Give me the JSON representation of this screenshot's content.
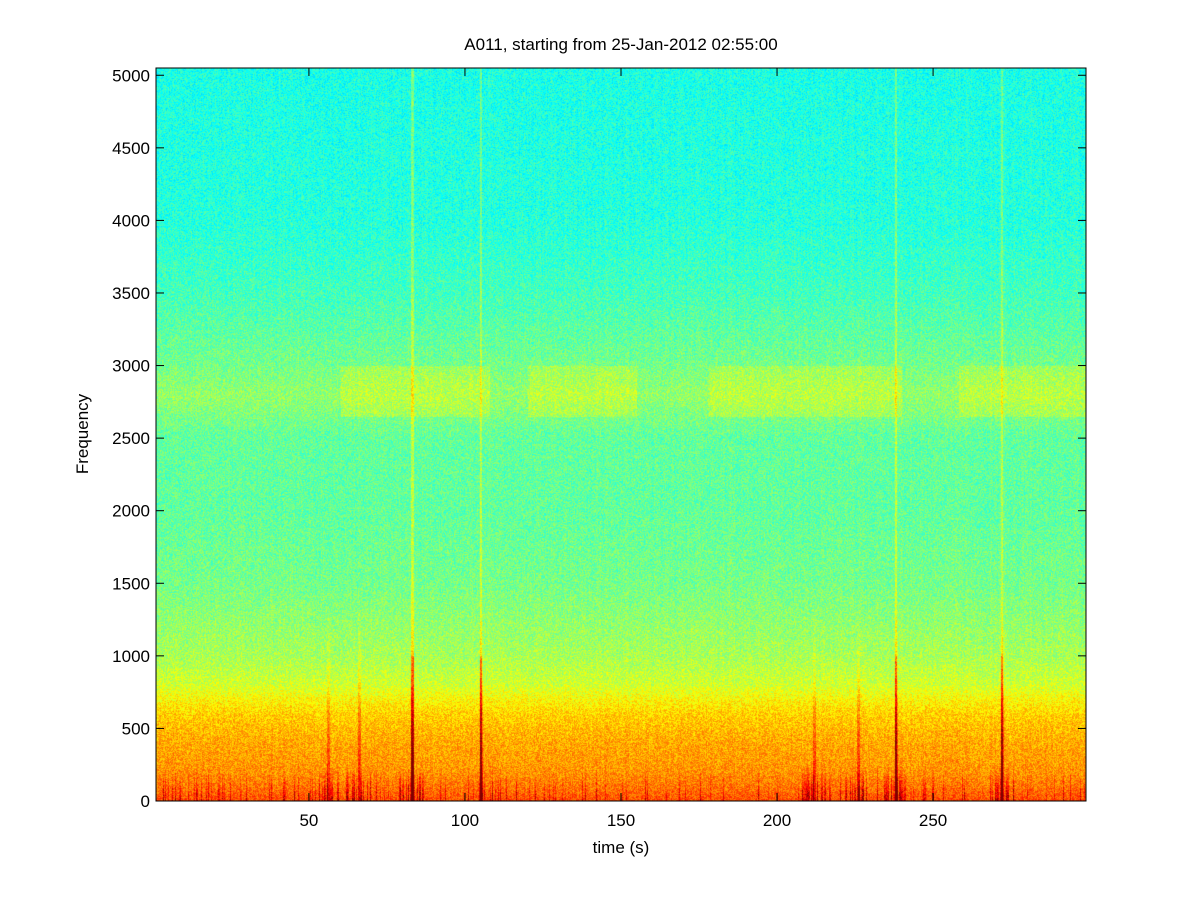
{
  "chart_data": {
    "type": "heatmap",
    "title": "A011, starting from 25-Jan-2012 02:55:00",
    "xlabel": "time (s)",
    "ylabel": "Frequency",
    "xlim": [
      1,
      299
    ],
    "ylim": [
      0,
      5050
    ],
    "x_ticks": [
      50,
      100,
      150,
      200,
      250
    ],
    "y_ticks": [
      0,
      500,
      1000,
      1500,
      2000,
      2500,
      3000,
      3500,
      4000,
      4500,
      5000
    ],
    "colormap": "jet",
    "grid": false,
    "legend": "none",
    "intensity_profile": {
      "frequency": [
        0,
        100,
        200,
        300,
        400,
        500,
        600,
        700,
        800,
        1000,
        1500,
        2000,
        2500,
        2800,
        3000,
        3500,
        4000,
        5000
      ],
      "level": [
        0.8,
        0.76,
        0.73,
        0.72,
        0.71,
        0.69,
        0.67,
        0.63,
        0.58,
        0.54,
        0.49,
        0.47,
        0.47,
        0.52,
        0.49,
        0.44,
        0.41,
        0.4
      ]
    },
    "broadband_events_s": [
      56,
      66,
      83,
      105,
      212,
      226,
      238,
      272
    ],
    "strong_vertical_lines_s": [
      83,
      105,
      238,
      272
    ],
    "high_band_patches_s": [
      [
        60,
        108
      ],
      [
        120,
        155
      ],
      [
        178,
        240
      ],
      [
        258,
        299
      ]
    ]
  }
}
